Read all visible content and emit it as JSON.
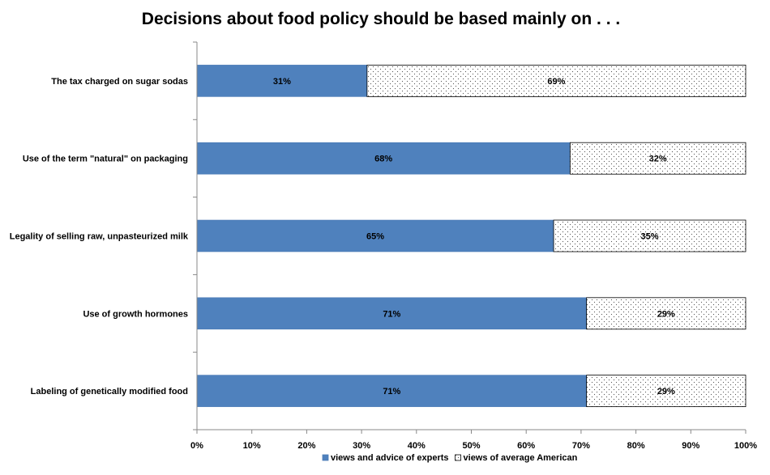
{
  "chart_data": {
    "type": "bar",
    "orientation": "horizontal",
    "stacked": "percent",
    "title": "Decisions about food policy should be based mainly on . . .",
    "categories": [
      "The tax charged on sugar sodas",
      "Use of the term \"natural\" on packaging",
      "Legality of selling raw, unpasteurized milk",
      "Use of growth hormones",
      "Labeling of genetically modified food"
    ],
    "series": [
      {
        "name": "views and advice of experts",
        "values": [
          31,
          68,
          65,
          71,
          71
        ],
        "labels": [
          "31%",
          "68%",
          "65%",
          "71%",
          "71%"
        ],
        "color": "#4f81bd"
      },
      {
        "name": "views of average American",
        "values": [
          69,
          32,
          35,
          29,
          29
        ],
        "labels": [
          "69%",
          "32%",
          "35%",
          "29%",
          "29%"
        ],
        "color": "#ffffff",
        "pattern": "dots"
      }
    ],
    "xlim": [
      0,
      100
    ],
    "ticks": [
      "0%",
      "10%",
      "20%",
      "30%",
      "40%",
      "50%",
      "60%",
      "70%",
      "80%",
      "90%",
      "100%"
    ],
    "grid": false,
    "legend": "bottom"
  }
}
